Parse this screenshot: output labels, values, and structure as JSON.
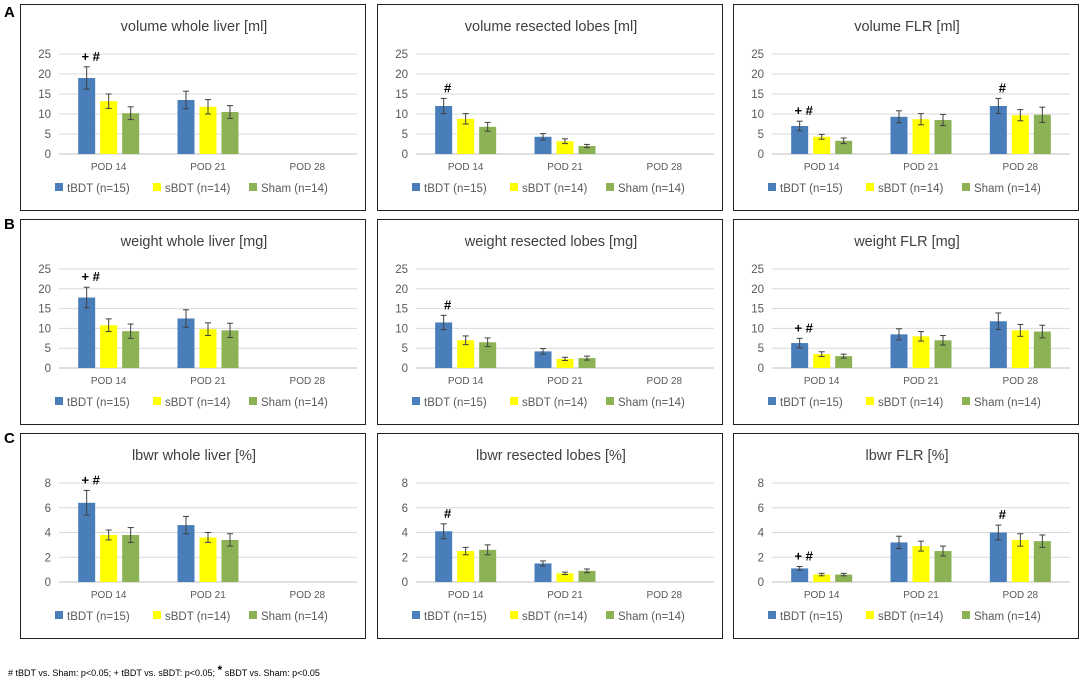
{
  "row_labels": [
    "A",
    "B",
    "C"
  ],
  "footnote": {
    "part1": "# tBDT vs. Sham: p<0.05; + tBDT vs. sBDT: p<0.05;",
    "star": "*",
    "part2": "sBDT vs. Sham: p<0.05"
  },
  "colors": {
    "tBDT": "#4a7ebb",
    "sBDT": "#ffff00",
    "Sham": "#8db255",
    "grid": "#d9d9d9",
    "text": "#595959"
  },
  "chart_data": [
    {
      "type": "bar",
      "title": "volume whole liver [ml]",
      "categories": [
        "POD 14",
        "POD 21",
        "POD 28"
      ],
      "ylim": [
        0,
        25
      ],
      "yticks": [
        0,
        5,
        10,
        15,
        20,
        25
      ],
      "series": [
        {
          "name": "tBDT (n=15)",
          "values": [
            19,
            13.5,
            null
          ],
          "errors": [
            2.8,
            2.2,
            null
          ]
        },
        {
          "name": "sBDT (n=14)",
          "values": [
            13.2,
            11.8,
            null
          ],
          "errors": [
            1.8,
            1.8,
            null
          ]
        },
        {
          "name": "Sham (n=14)",
          "values": [
            10.2,
            10.5,
            null
          ],
          "errors": [
            1.6,
            1.6,
            null
          ]
        }
      ],
      "annotations": [
        {
          "category": 0,
          "text": "+ #"
        }
      ]
    },
    {
      "type": "bar",
      "title": "volume resected lobes [ml]",
      "categories": [
        "POD 14",
        "POD 21",
        "POD 28"
      ],
      "ylim": [
        0,
        25
      ],
      "yticks": [
        0,
        5,
        10,
        15,
        20,
        25
      ],
      "series": [
        {
          "name": "tBDT (n=15)",
          "values": [
            12,
            4.3,
            null
          ],
          "errors": [
            1.9,
            0.8,
            null
          ]
        },
        {
          "name": "sBDT (n=14)",
          "values": [
            8.8,
            3.2,
            null
          ],
          "errors": [
            1.3,
            0.6,
            null
          ]
        },
        {
          "name": "Sham (n=14)",
          "values": [
            6.8,
            2,
            null
          ],
          "errors": [
            1.1,
            0.4,
            null
          ]
        }
      ],
      "annotations": [
        {
          "category": 0,
          "text": "#"
        }
      ]
    },
    {
      "type": "bar",
      "title": "volume FLR [ml]",
      "categories": [
        "POD 14",
        "POD 21",
        "POD 28"
      ],
      "ylim": [
        0,
        25
      ],
      "yticks": [
        0,
        5,
        10,
        15,
        20,
        25
      ],
      "series": [
        {
          "name": "tBDT (n=15)",
          "values": [
            7,
            9.3,
            12
          ],
          "errors": [
            1.2,
            1.5,
            1.9
          ]
        },
        {
          "name": "sBDT (n=14)",
          "values": [
            4.3,
            8.7,
            9.7
          ],
          "errors": [
            0.6,
            1.4,
            1.4
          ]
        },
        {
          "name": "Sham (n=14)",
          "values": [
            3.3,
            8.5,
            9.8
          ],
          "errors": [
            0.7,
            1.4,
            1.9
          ]
        }
      ],
      "annotations": [
        {
          "category": 0,
          "text": "+ #"
        },
        {
          "category": 2,
          "text": "#"
        }
      ]
    },
    {
      "type": "bar",
      "title": "weight whole liver [mg]",
      "categories": [
        "POD 14",
        "POD 21",
        "POD 28"
      ],
      "ylim": [
        0,
        25
      ],
      "yticks": [
        0,
        5,
        10,
        15,
        20,
        25
      ],
      "series": [
        {
          "name": "tBDT (n=15)",
          "values": [
            17.8,
            12.5,
            null
          ],
          "errors": [
            2.6,
            2.2,
            null
          ]
        },
        {
          "name": "sBDT (n=14)",
          "values": [
            10.8,
            9.8,
            null
          ],
          "errors": [
            1.6,
            1.6,
            null
          ]
        },
        {
          "name": "Sham (n=14)",
          "values": [
            9.3,
            9.5,
            null
          ],
          "errors": [
            1.8,
            1.8,
            null
          ]
        }
      ],
      "annotations": [
        {
          "category": 0,
          "text": "+ #"
        }
      ]
    },
    {
      "type": "bar",
      "title": "weight resected lobes [mg]",
      "categories": [
        "POD 14",
        "POD 21",
        "POD 28"
      ],
      "ylim": [
        0,
        25
      ],
      "yticks": [
        0,
        5,
        10,
        15,
        20,
        25
      ],
      "series": [
        {
          "name": "tBDT (n=15)",
          "values": [
            11.5,
            4.2,
            null
          ],
          "errors": [
            1.8,
            0.7,
            null
          ]
        },
        {
          "name": "sBDT (n=14)",
          "values": [
            7,
            2.3,
            null
          ],
          "errors": [
            1.1,
            0.4,
            null
          ]
        },
        {
          "name": "Sham (n=14)",
          "values": [
            6.5,
            2.5,
            null
          ],
          "errors": [
            1.1,
            0.5,
            null
          ]
        }
      ],
      "annotations": [
        {
          "category": 0,
          "text": "#"
        }
      ]
    },
    {
      "type": "bar",
      "title": "weight FLR [mg]",
      "categories": [
        "POD 14",
        "POD 21",
        "POD 28"
      ],
      "ylim": [
        0,
        25
      ],
      "yticks": [
        0,
        5,
        10,
        15,
        20,
        25
      ],
      "series": [
        {
          "name": "tBDT (n=15)",
          "values": [
            6.3,
            8.5,
            11.8
          ],
          "errors": [
            1.2,
            1.4,
            2.1
          ]
        },
        {
          "name": "sBDT (n=14)",
          "values": [
            3.5,
            8,
            9.5
          ],
          "errors": [
            0.6,
            1.2,
            1.5
          ]
        },
        {
          "name": "Sham (n=14)",
          "values": [
            3,
            7,
            9.2
          ],
          "errors": [
            0.5,
            1.2,
            1.6
          ]
        }
      ],
      "annotations": [
        {
          "category": 0,
          "text": "+ #"
        }
      ]
    },
    {
      "type": "bar",
      "title": "lbwr whole liver [%]",
      "categories": [
        "POD 14",
        "POD 21",
        "POD 28"
      ],
      "ylim": [
        0,
        8
      ],
      "yticks": [
        0,
        2,
        4,
        6,
        8
      ],
      "series": [
        {
          "name": "tBDT (n=15)",
          "values": [
            6.4,
            4.6,
            null
          ],
          "errors": [
            1,
            0.7,
            null
          ]
        },
        {
          "name": "sBDT (n=14)",
          "values": [
            3.8,
            3.6,
            null
          ],
          "errors": [
            0.4,
            0.4,
            null
          ]
        },
        {
          "name": "Sham (n=14)",
          "values": [
            3.8,
            3.4,
            null
          ],
          "errors": [
            0.6,
            0.5,
            null
          ]
        }
      ],
      "annotations": [
        {
          "category": 0,
          "text": "+ #"
        }
      ]
    },
    {
      "type": "bar",
      "title": "lbwr resected lobes [%]",
      "categories": [
        "POD 14",
        "POD 21",
        "POD 28"
      ],
      "ylim": [
        0,
        8
      ],
      "yticks": [
        0,
        2,
        4,
        6,
        8
      ],
      "series": [
        {
          "name": "tBDT (n=15)",
          "values": [
            4.1,
            1.5,
            null
          ],
          "errors": [
            0.6,
            0.2,
            null
          ]
        },
        {
          "name": "sBDT (n=14)",
          "values": [
            2.5,
            0.7,
            null
          ],
          "errors": [
            0.3,
            0.1,
            null
          ]
        },
        {
          "name": "Sham (n=14)",
          "values": [
            2.6,
            0.9,
            null
          ],
          "errors": [
            0.4,
            0.15,
            null
          ]
        }
      ],
      "annotations": [
        {
          "category": 0,
          "text": "#"
        }
      ]
    },
    {
      "type": "bar",
      "title": "lbwr FLR [%]",
      "categories": [
        "POD 14",
        "POD 21",
        "POD 28"
      ],
      "ylim": [
        0,
        8
      ],
      "yticks": [
        0,
        2,
        4,
        6,
        8
      ],
      "series": [
        {
          "name": "tBDT (n=15)",
          "values": [
            1.1,
            3.2,
            4
          ],
          "errors": [
            0.15,
            0.5,
            0.6
          ]
        },
        {
          "name": "sBDT (n=14)",
          "values": [
            0.6,
            2.9,
            3.4
          ],
          "errors": [
            0.1,
            0.4,
            0.5
          ]
        },
        {
          "name": "Sham (n=14)",
          "values": [
            0.6,
            2.5,
            3.3
          ],
          "errors": [
            0.1,
            0.4,
            0.5
          ]
        }
      ],
      "annotations": [
        {
          "category": 0,
          "text": "+ #"
        },
        {
          "category": 2,
          "text": "#"
        }
      ]
    }
  ]
}
